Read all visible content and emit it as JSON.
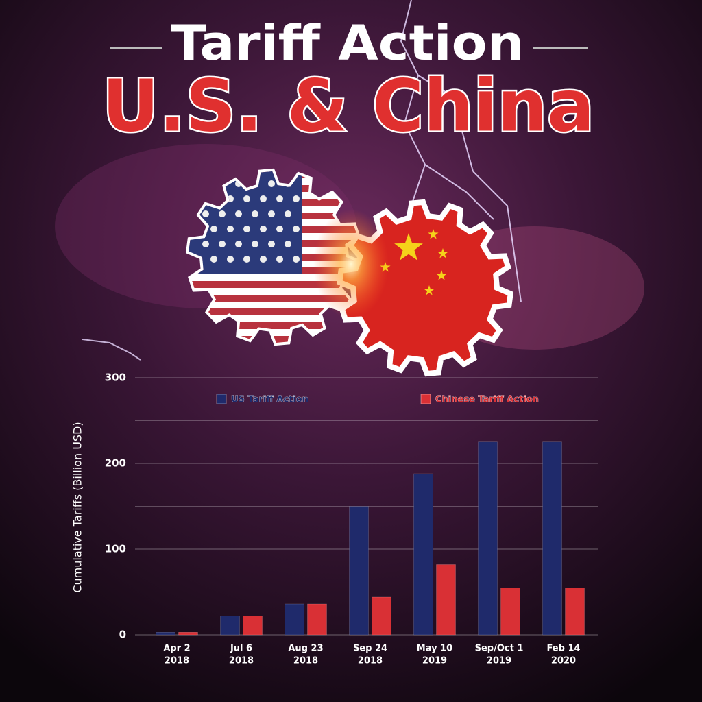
{
  "header": {
    "title": "Tariff Action",
    "subtitle": "U.S. & China"
  },
  "chart_data": {
    "type": "bar",
    "y_label": "Cumulative Tariffs (Billion USD)",
    "categories": [
      [
        "Apr 2",
        "2018"
      ],
      [
        "Jul 6",
        "2018"
      ],
      [
        "Aug 23",
        "2018"
      ],
      [
        "Sep 24",
        "2018"
      ],
      [
        "May 10",
        "2019"
      ],
      [
        "Sep/Oct 1",
        "2019"
      ],
      [
        "Feb 14",
        "2020"
      ]
    ],
    "series": [
      {
        "name": "US Tariff Action",
        "color": "#1f2a6b",
        "values": [
          3,
          22,
          36,
          150,
          188,
          225,
          225
        ]
      },
      {
        "name": "Chinese Tariff Action",
        "color": "#d93035",
        "values": [
          3,
          22,
          36,
          44,
          82,
          55,
          55
        ]
      }
    ],
    "ylim": [
      0,
      300
    ],
    "yticks": [
      0,
      100,
      200,
      300
    ],
    "minor_gridlines": [
      50,
      150,
      250
    ],
    "grid": true,
    "legend": "top"
  }
}
